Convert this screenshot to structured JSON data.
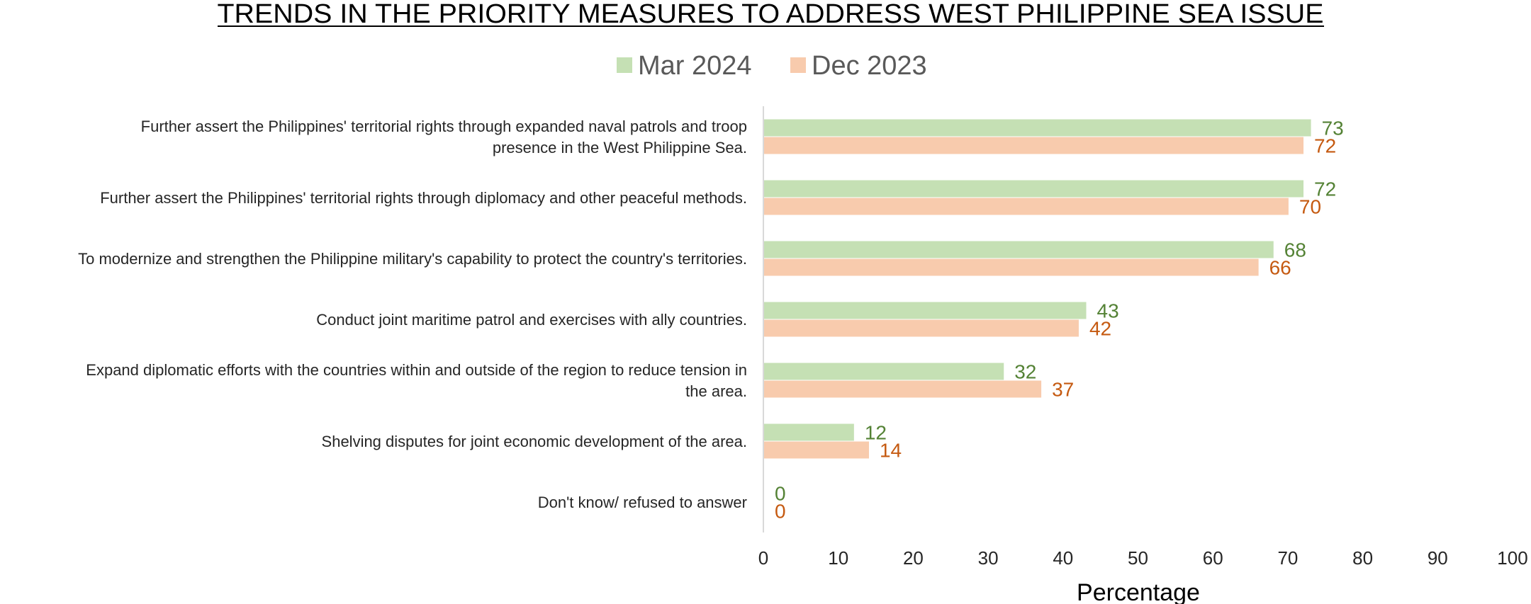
{
  "chart_data": {
    "type": "bar",
    "orientation": "horizontal",
    "title": "TRENDS IN THE PRIORITY MEASURES TO ADDRESS WEST PHILIPPINE SEA ISSUE",
    "xlabel": "Percentage",
    "xlim": [
      0,
      100
    ],
    "ticks": [
      "0",
      "10",
      "20",
      "30",
      "40",
      "50",
      "60",
      "70",
      "80",
      "90",
      "100"
    ],
    "legend_position": "top",
    "categories": [
      [
        "Further assert the Philippines' territorial rights through expanded naval patrols and troop",
        "presence in the West Philippine Sea."
      ],
      [
        "Further assert the Philippines' territorial rights through diplomacy and other peaceful methods."
      ],
      [
        "To modernize and strengthen the Philippine military's capability to protect the country's territories."
      ],
      [
        "Conduct joint maritime patrol and exercises with ally countries."
      ],
      [
        "Expand diplomatic efforts with the countries within and outside of the region to reduce tension in",
        "the area."
      ],
      [
        "Shelving disputes for joint economic development of the area."
      ],
      [
        "Don't know/ refused to answer"
      ]
    ],
    "series": [
      {
        "name": "Mar 2024",
        "values": [
          73,
          72,
          68,
          43,
          32,
          12,
          0
        ],
        "color": "#c5e0b4",
        "label_color": "#548235"
      },
      {
        "name": "Dec 2023",
        "values": [
          72,
          70,
          66,
          42,
          37,
          14,
          0
        ],
        "color": "#f8cbad",
        "label_color": "#c55a11"
      }
    ],
    "axis_color": "#d9d9d9"
  }
}
